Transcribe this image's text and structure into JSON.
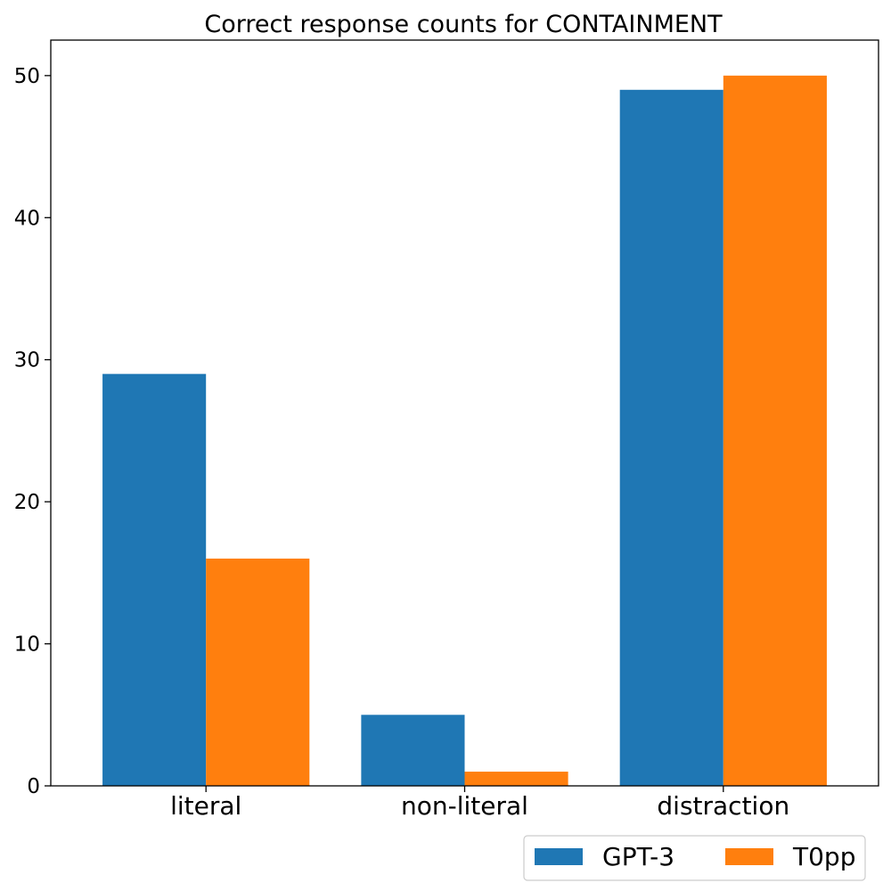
{
  "chart_data": {
    "type": "bar",
    "title": "Correct response counts for CONTAINMENT",
    "categories": [
      "literal",
      "non-literal",
      "distraction"
    ],
    "series": [
      {
        "name": "GPT-3",
        "values": [
          29,
          5,
          49
        ]
      },
      {
        "name": "T0pp",
        "values": [
          16,
          1,
          50
        ]
      }
    ],
    "xlabel": "",
    "ylabel": "",
    "ylim": [
      0,
      52.5
    ],
    "yticks": [
      0,
      10,
      20,
      30,
      40,
      50
    ],
    "grid": false,
    "legend_position": "bottom-right",
    "colors": [
      "#1f77b4",
      "#ff7f0e"
    ]
  }
}
